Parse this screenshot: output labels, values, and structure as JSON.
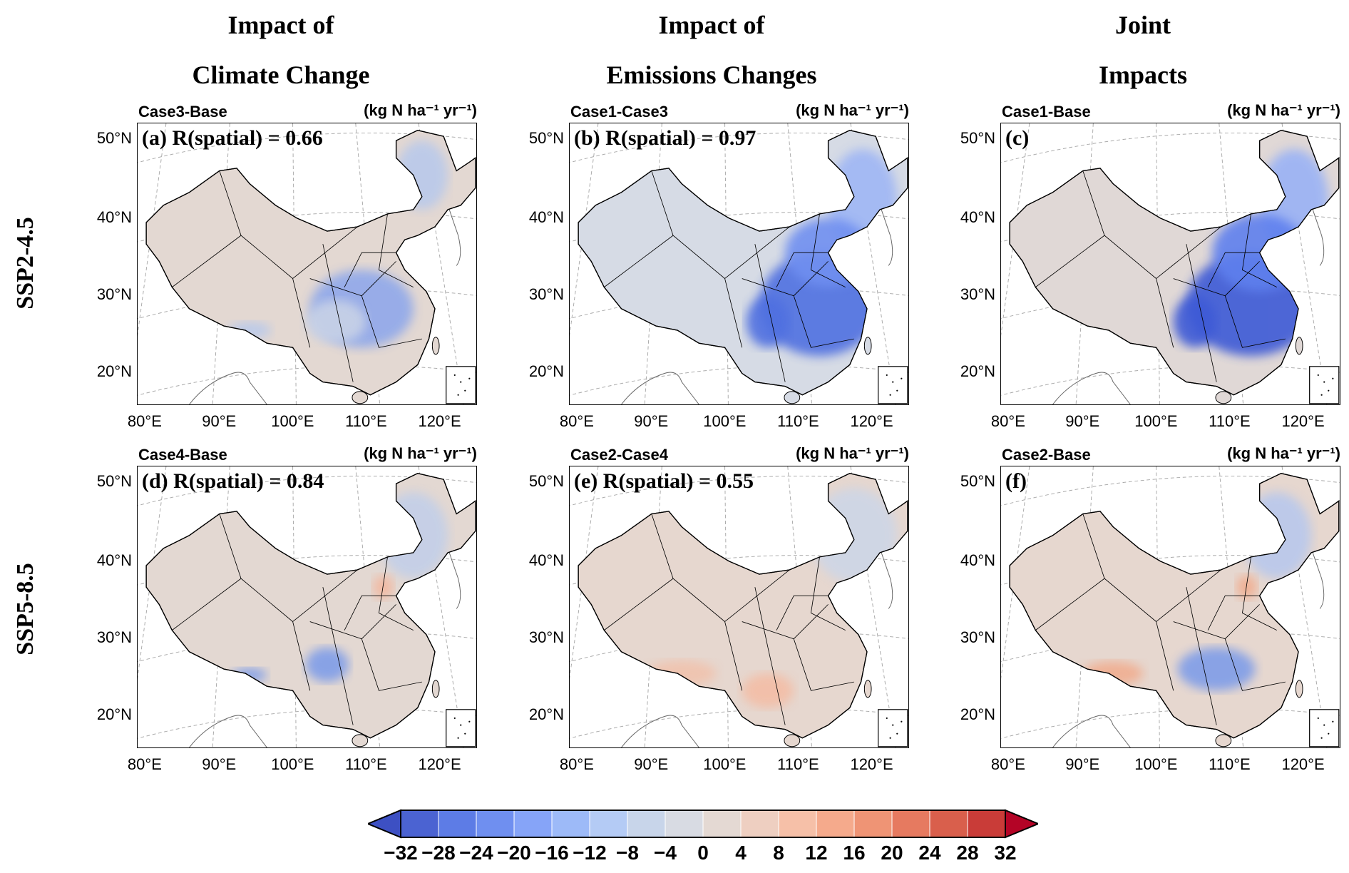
{
  "column_titles": [
    {
      "line1": "Impact of",
      "line2": "Climate Change"
    },
    {
      "line1": "Impact of",
      "line2": "Emissions Changes"
    },
    {
      "line1": "Joint",
      "line2": "Impacts"
    }
  ],
  "row_labels": [
    "SSP2-4.5",
    "SSP5-8.5"
  ],
  "lat_ticks": [
    "50°N",
    "40°N",
    "30°N",
    "20°N"
  ],
  "lon_ticks": [
    "80°E",
    "90°E",
    "100°E",
    "110°E",
    "120°E"
  ],
  "panels": [
    {
      "case": "Case3-Base",
      "unit": "(kg N ha⁻¹ yr⁻¹)",
      "label": "(a) R(spatial) = 0.66",
      "base_color": "#e3d8d2",
      "hotspot_colors": [
        "#b9c9ea",
        "#8fa8ea",
        "#c8d2e6"
      ]
    },
    {
      "case": "Case1-Case3",
      "unit": "(kg N ha⁻¹ yr⁻¹)",
      "label": "(b) R(spatial) = 0.97",
      "base_color": "#d6dbe5",
      "hotspot_colors": [
        "#6f8ff0",
        "#4f6fe0",
        "#9fb6f4"
      ]
    },
    {
      "case": "Case1-Base",
      "unit": "(kg N ha⁻¹ yr⁻¹)",
      "label": "(c)",
      "base_color": "#e0d8d6",
      "hotspot_colors": [
        "#5f80ee",
        "#3d5ad6",
        "#9ab2f5"
      ]
    },
    {
      "case": "Case4-Base",
      "unit": "(kg N ha⁻¹ yr⁻¹)",
      "label": "(d) R(spatial) = 0.84",
      "base_color": "#e3d8d2",
      "hotspot_colors": [
        "#c2cfe8",
        "#7f9de8",
        "#f2b8a0"
      ]
    },
    {
      "case": "Case2-Case4",
      "unit": "(kg N ha⁻¹ yr⁻¹)",
      "label": "(e) R(spatial) = 0.55",
      "base_color": "#e6d7cf",
      "hotspot_colors": [
        "#cdd6e6",
        "#f0c2ad",
        "#f3bda6"
      ]
    },
    {
      "case": "Case2-Base",
      "unit": "(kg N ha⁻¹ yr⁻¹)",
      "label": "(f)",
      "base_color": "#e6d7cf",
      "hotspot_colors": [
        "#b8c8ec",
        "#7f9de8",
        "#f0ad90"
      ]
    }
  ],
  "colorbar": {
    "ticks": [
      "−32",
      "−28",
      "−24",
      "−20",
      "−16",
      "−12",
      "−8",
      "−4",
      "0",
      "4",
      "8",
      "12",
      "16",
      "20",
      "24",
      "28",
      "32"
    ],
    "colors": [
      "#4b63d2",
      "#5d7ce6",
      "#6f8ff0",
      "#86a4f8",
      "#9dbaf8",
      "#b4cbf5",
      "#c8d5ea",
      "#d8dbe3",
      "#e4d9d3",
      "#eecfc1",
      "#f6c0a8",
      "#f5aa8c",
      "#ef9475",
      "#e67a60",
      "#d95f4c",
      "#c93c38"
    ],
    "under_color": "#3d50c3",
    "over_color": "#b40426"
  }
}
